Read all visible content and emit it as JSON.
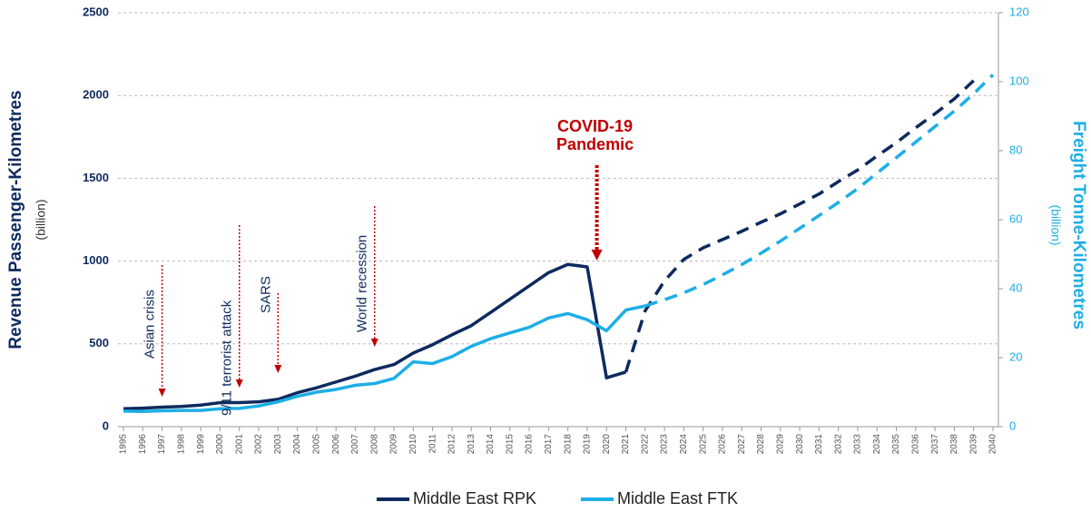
{
  "chart_data": {
    "type": "line",
    "categories": [
      "1995",
      "1996",
      "1997",
      "1998",
      "1999",
      "2000",
      "2001",
      "2002",
      "2003",
      "2004",
      "2005",
      "2006",
      "2007",
      "2008",
      "2009",
      "2010",
      "2011",
      "2012",
      "2013",
      "2014",
      "2015",
      "2016",
      "2017",
      "2018",
      "2019",
      "2020",
      "2021",
      "2022",
      "2023",
      "2024",
      "2025",
      "2026",
      "2027",
      "2028",
      "2029",
      "2030",
      "2031",
      "2032",
      "2033",
      "2034",
      "2035",
      "2036",
      "2037",
      "2038",
      "2039",
      "2040"
    ],
    "series": [
      {
        "name": "Middle East RPK",
        "color": "#0e2a5e",
        "axis": "y",
        "dashed_from": 2021,
        "values": [
          108,
          112,
          118,
          122,
          130,
          145,
          145,
          150,
          165,
          205,
          235,
          270,
          305,
          345,
          375,
          445,
          495,
          555,
          610,
          690,
          770,
          850,
          930,
          980,
          965,
          295,
          330,
          700,
          880,
          1010,
          1080,
          1130,
          1180,
          1235,
          1285,
          1345,
          1405,
          1480,
          1550,
          1635,
          1715,
          1805,
          1890,
          1980,
          2090,
          null
        ]
      },
      {
        "name": "Middle East FTK",
        "color": "#1eaee6",
        "axis": "y2",
        "dashed_from": 2022,
        "values": [
          4.5,
          4.4,
          4.6,
          4.7,
          4.7,
          5.2,
          5.3,
          6.0,
          7.2,
          8.8,
          10.0,
          10.8,
          12.0,
          12.5,
          14.0,
          18.8,
          18.3,
          20.3,
          23.3,
          25.5,
          27.2,
          28.8,
          31.5,
          32.8,
          31.0,
          27.8,
          33.8,
          35.0,
          36.8,
          38.8,
          41.2,
          44.0,
          47.0,
          50.3,
          53.8,
          57.5,
          61.2,
          65.0,
          69.0,
          73.5,
          78.0,
          82.5,
          87.0,
          91.5,
          96.5,
          102
        ]
      }
    ],
    "ylim": [
      0,
      2500
    ],
    "yticks": [
      0,
      500,
      1000,
      1500,
      2000,
      2500
    ],
    "y2lim": [
      0,
      120
    ],
    "y2ticks": [
      0,
      20,
      40,
      60,
      80,
      100,
      120
    ],
    "y_label": "Revenue Passenger-Kilometres",
    "y_unit": "(billion)",
    "y2_label": "Freight Tonne-Kilometres",
    "y2_unit": "(billion)",
    "grid": true,
    "annotations": [
      {
        "text": "Asian crisis",
        "x": 1997
      },
      {
        "text": "9/11 terrorist attack",
        "x": 2001
      },
      {
        "text": "SARS",
        "x": 2003
      },
      {
        "text": "World recession",
        "x": 2008
      },
      {
        "text": [
          "COVID-19",
          "Pandemic"
        ],
        "x": 2019.5
      }
    ]
  }
}
